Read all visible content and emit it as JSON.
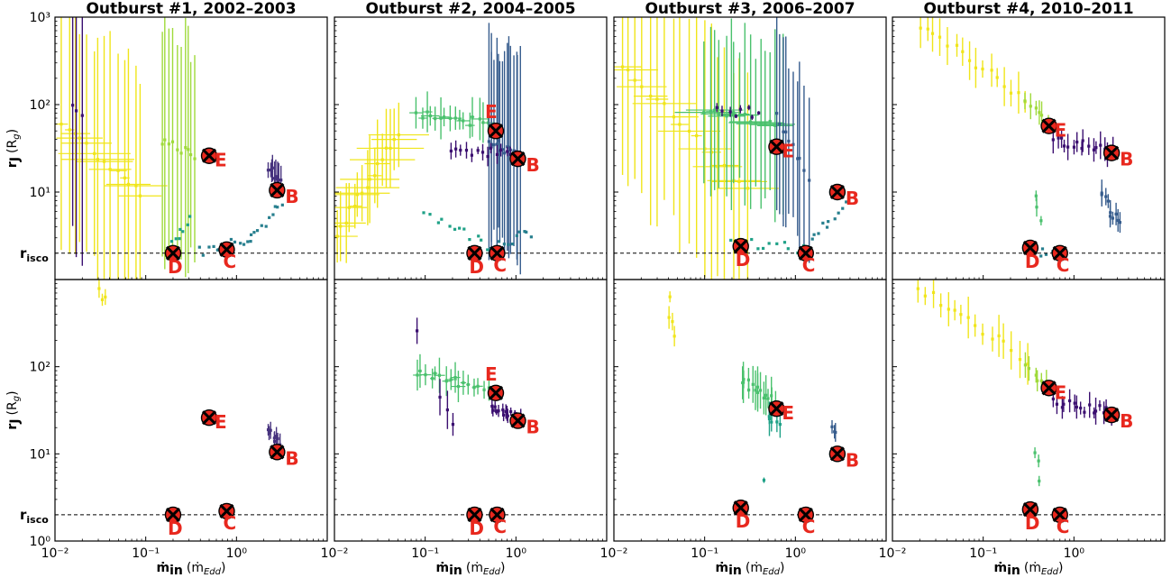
{
  "figure": {
    "risco_label": "r",
    "risco_sub": "isco",
    "ylabel": {
      "main": "r",
      "sub": "J",
      "unit": "(R",
      "unit_sub": "g",
      "unit_close": ")"
    },
    "xlabel": {
      "main": "ṁ",
      "sub": "in",
      "unit": "(ṁ",
      "unit_sub": "Edd",
      "unit_close": ")"
    },
    "colors": {
      "marker": "#e8281e",
      "label": "#e8281e",
      "dashed": "#000000"
    }
  },
  "chart_data": [
    {
      "type": "scatter",
      "title": "Outburst #1, 2002–2003",
      "x_scale": "log",
      "y_scale": "log",
      "xlim": [
        0.01,
        10
      ],
      "ylim": [
        1,
        1000
      ],
      "x_ticks": [
        "10⁻²",
        "10⁻¹",
        "10⁰"
      ],
      "y_ticks": [
        "10⁰",
        "10¹",
        "10²",
        "10³"
      ],
      "risco": 2,
      "markers": [
        {
          "label": "B",
          "x": 2.8,
          "y": 10.5
        },
        {
          "label": "C",
          "x": 0.78,
          "y": 2.2
        },
        {
          "label": "D",
          "x": 0.2,
          "y": 2.0
        },
        {
          "label": "E",
          "x": 0.5,
          "y": 26
        }
      ]
    },
    {
      "type": "scatter",
      "title": "Outburst #2, 2004–2005",
      "x_scale": "log",
      "y_scale": "log",
      "xlim": [
        0.01,
        10
      ],
      "ylim": [
        1,
        1000
      ],
      "x_ticks": [
        "10⁻²",
        "10⁻¹",
        "10⁰"
      ],
      "y_ticks": [
        "10⁰",
        "10¹",
        "10²",
        "10³"
      ],
      "risco": 2,
      "markers": [
        {
          "label": "B",
          "x": 1.05,
          "y": 24
        },
        {
          "label": "C",
          "x": 0.62,
          "y": 2.0
        },
        {
          "label": "D",
          "x": 0.35,
          "y": 2.0
        },
        {
          "label": "E",
          "x": 0.6,
          "y": 50
        }
      ]
    },
    {
      "type": "scatter",
      "title": "Outburst #3, 2006–2007",
      "x_scale": "log",
      "y_scale": "log",
      "xlim": [
        0.01,
        10
      ],
      "ylim": [
        1,
        1000
      ],
      "x_ticks": [
        "10⁻²",
        "10⁻¹",
        "10⁰"
      ],
      "y_ticks": [
        "10⁰",
        "10¹",
        "10²",
        "10³"
      ],
      "risco": 2,
      "markers": [
        {
          "label": "B",
          "x": 2.9,
          "y": 10
        },
        {
          "label": "C",
          "x": 1.3,
          "y": 2.0
        },
        {
          "label": "D",
          "x": 0.25,
          "y": 2.4
        },
        {
          "label": "E",
          "x": 0.62,
          "y": 33
        }
      ]
    },
    {
      "type": "scatter",
      "title": "Outburst #4, 2010–2011",
      "x_scale": "log",
      "y_scale": "log",
      "xlim": [
        0.01,
        10
      ],
      "ylim": [
        1,
        1000
      ],
      "x_ticks": [
        "10⁻²",
        "10⁻¹",
        "10⁰"
      ],
      "y_ticks": [
        "10⁰",
        "10¹",
        "10²",
        "10³"
      ],
      "risco": 2,
      "markers": [
        {
          "label": "B",
          "x": 2.6,
          "y": 28
        },
        {
          "label": "C",
          "x": 0.7,
          "y": 2.0
        },
        {
          "label": "D",
          "x": 0.33,
          "y": 2.3
        },
        {
          "label": "E",
          "x": 0.53,
          "y": 57
        }
      ]
    }
  ]
}
